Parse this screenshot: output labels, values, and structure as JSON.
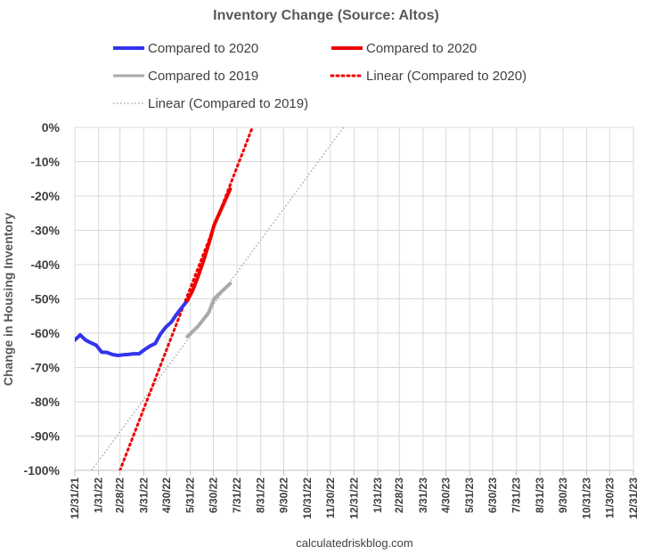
{
  "chart_data": {
    "type": "line",
    "title": "Inventory Change (Source: Altos)",
    "xlabel": "",
    "ylabel": "Change in Housing Inventory",
    "footer": "calculatedriskblog.com",
    "x_ticks": [
      "12/31/21",
      "1/31/22",
      "2/28/22",
      "3/31/22",
      "4/30/22",
      "5/31/22",
      "6/30/22",
      "7/31/22",
      "8/31/22",
      "9/30/22",
      "10/31/22",
      "11/30/22",
      "12/31/22",
      "1/31/23",
      "2/28/23",
      "3/31/23",
      "4/30/23",
      "5/31/23",
      "6/30/23",
      "7/31/23",
      "8/31/23",
      "9/30/23",
      "10/31/23",
      "11/30/23",
      "12/31/23"
    ],
    "y_ticks": [
      "0%",
      "-10%",
      "-20%",
      "-30%",
      "-40%",
      "-50%",
      "-60%",
      "-70%",
      "-80%",
      "-90%",
      "-100%"
    ],
    "xlim": [
      "12/31/21",
      "12/31/23"
    ],
    "ylim": [
      -100,
      0
    ],
    "grid": true,
    "legend_position": "top",
    "series": [
      {
        "name": "Compared to 2020",
        "color": "#3333ee",
        "style": "solid",
        "x": [
          "12/31/21",
          "1/7/22",
          "1/14/22",
          "1/21/22",
          "1/28/22",
          "2/4/22",
          "2/11/22",
          "2/18/22",
          "2/25/22",
          "3/4/22",
          "3/11/22",
          "3/18/22",
          "3/25/22",
          "4/1/22",
          "4/8/22",
          "4/15/22",
          "4/22/22",
          "4/29/22",
          "5/6/22",
          "5/13/22",
          "5/20/22",
          "5/27/22"
        ],
        "y": [
          -62,
          -60.5,
          -62,
          -62.8,
          -63.5,
          -65.5,
          -65.6,
          -66.2,
          -66.5,
          -66.3,
          -66.2,
          -66,
          -66,
          -64.8,
          -63.8,
          -63,
          -60.2,
          -58.2,
          -56.8,
          -54.5,
          -52.5,
          -50.5
        ]
      },
      {
        "name": "Compared to 2020",
        "color": "#ee0000",
        "style": "solid",
        "x": [
          "5/27/22",
          "6/3/22",
          "6/10/22",
          "6/17/22",
          "6/24/22",
          "7/1/22",
          "7/8/22",
          "7/15/22",
          "7/22/22"
        ],
        "y": [
          -50.5,
          -47.5,
          -43.5,
          -39,
          -34,
          -28.5,
          -25,
          -21.5,
          -18
        ]
      },
      {
        "name": "Compared to 2019",
        "color": "#aaaaaa",
        "style": "solid",
        "x": [
          "5/27/22",
          "6/3/22",
          "6/10/22",
          "6/17/22",
          "6/24/22",
          "7/1/22",
          "7/8/22",
          "7/15/22",
          "7/22/22"
        ],
        "y": [
          -61,
          -59.5,
          -58,
          -56,
          -54,
          -50,
          -48.5,
          -47,
          -45.5
        ]
      },
      {
        "name": "Linear (Compared to 2020)",
        "color": "#ee0000",
        "style": "dotted-trend",
        "x": [
          "2/28/22",
          "8/20/22"
        ],
        "y": [
          -100,
          0
        ]
      },
      {
        "name": "Linear (Compared to 2019)",
        "color": "#aaaaaa",
        "style": "thin-dotted-trend",
        "x": [
          "1/22/22",
          "12/17/22"
        ],
        "y": [
          -100,
          0
        ]
      }
    ]
  }
}
